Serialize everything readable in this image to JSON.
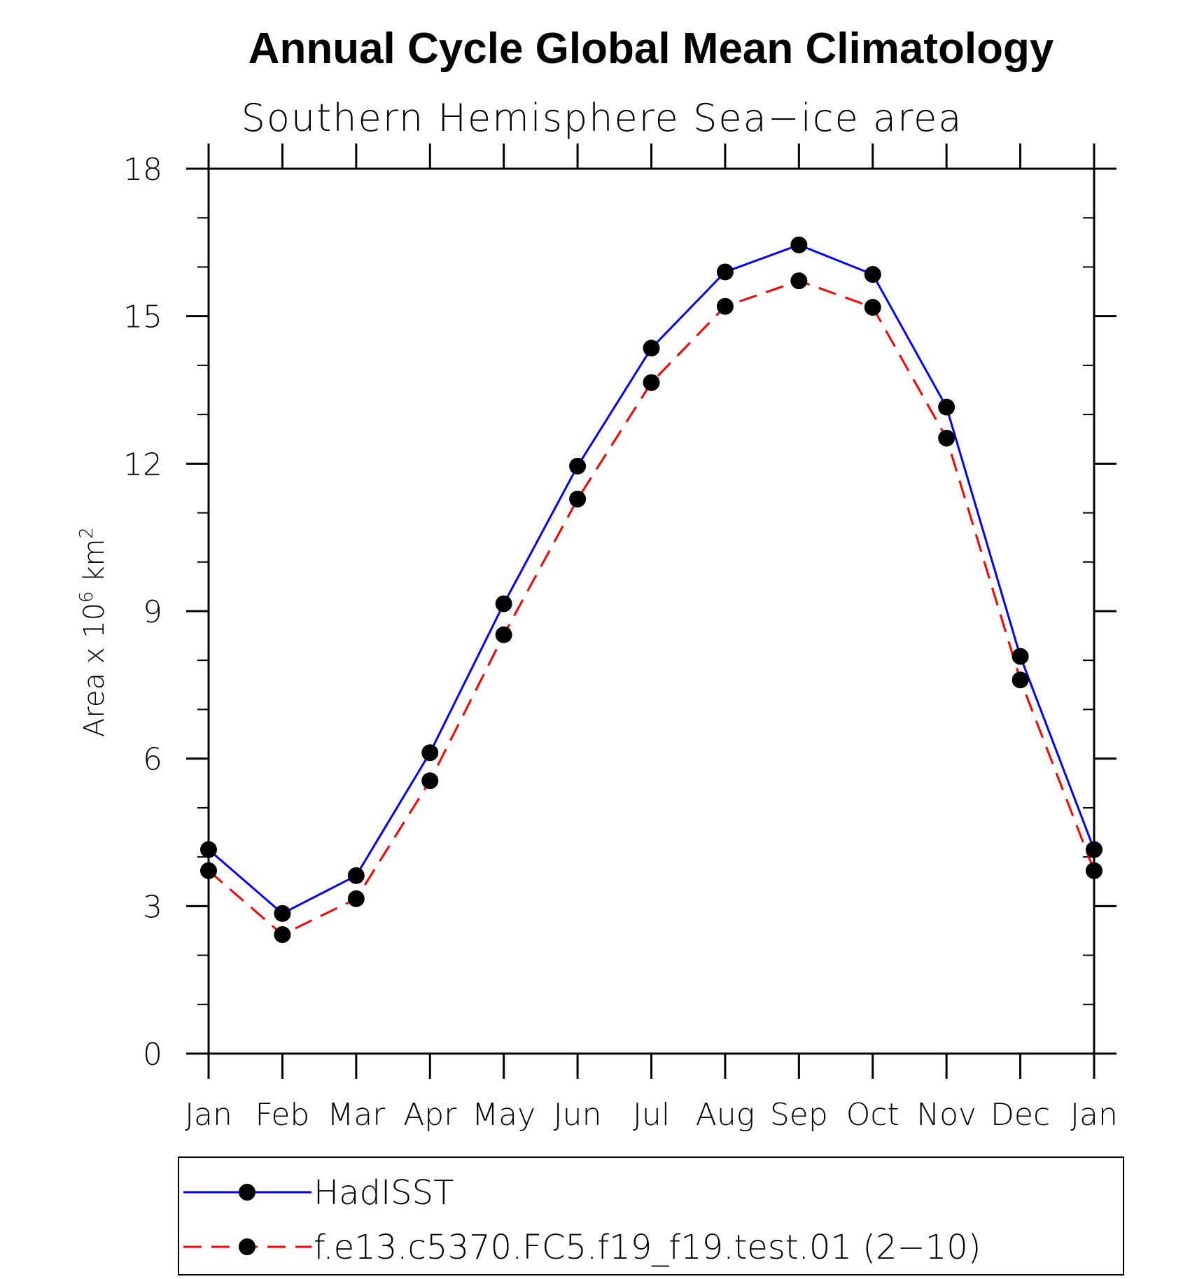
{
  "chart_data": {
    "type": "line",
    "title": "Annual Cycle Global Mean Climatology",
    "subtitle": "Southern Hemisphere Sea−ice area",
    "ylabel": "Area x 10",
    "ylabel_sup1": "6",
    "ylabel_unit": " km",
    "ylabel_sup2": "2",
    "xlabel": "",
    "ylim": [
      0,
      18
    ],
    "yticks": [
      0,
      3,
      6,
      9,
      12,
      15,
      18
    ],
    "yminor_step": 1,
    "categories": [
      "Jan",
      "Feb",
      "Mar",
      "Apr",
      "May",
      "Jun",
      "Jul",
      "Aug",
      "Sep",
      "Oct",
      "Nov",
      "Dec",
      "Jan"
    ],
    "series": [
      {
        "name": "HadISST",
        "color": "#0000ff",
        "dash": "solid",
        "values": [
          4.15,
          2.85,
          3.62,
          6.12,
          9.15,
          11.95,
          14.35,
          15.9,
          16.45,
          15.85,
          13.15,
          8.08,
          4.15
        ]
      },
      {
        "name": "f.e13.c5370.FC5.f19_f19.test.01 (2−10)",
        "color": "#ff0000",
        "dash": "dashed",
        "values": [
          3.72,
          2.42,
          3.15,
          5.55,
          8.52,
          11.28,
          13.65,
          15.2,
          15.72,
          15.18,
          12.52,
          7.6,
          3.72
        ]
      }
    ],
    "grid": false,
    "legend_position": "bottom"
  }
}
